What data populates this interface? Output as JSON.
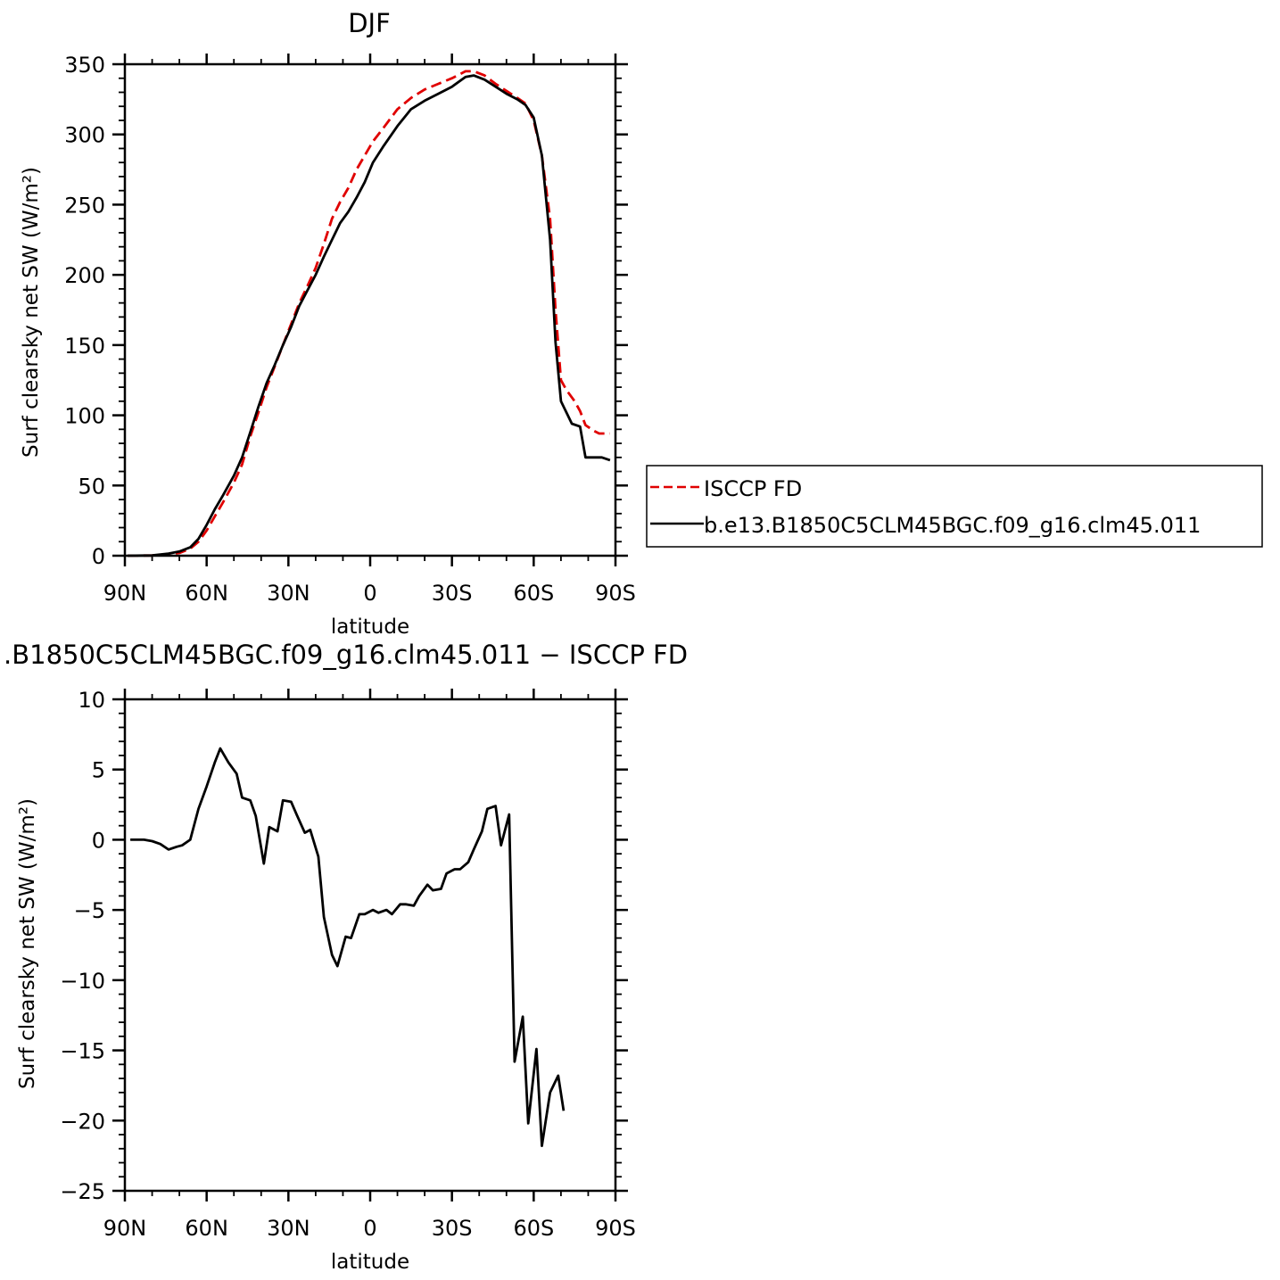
{
  "chart_data": [
    {
      "type": "line",
      "title": "DJF",
      "xlabel": "latitude",
      "ylabel": "Surf clearsky net SW (W/m²)",
      "xlim": [
        -90,
        90
      ],
      "ylim": [
        0,
        350
      ],
      "xticks": [
        -90,
        -60,
        -30,
        0,
        30,
        60,
        90
      ],
      "xtick_labels": [
        "90N",
        "60N",
        "30N",
        "0",
        "30S",
        "60S",
        "90S"
      ],
      "yticks": [
        0,
        50,
        100,
        150,
        200,
        250,
        300,
        350
      ],
      "ytick_labels": [
        "0",
        "50",
        "100",
        "150",
        "200",
        "250",
        "300",
        "350"
      ],
      "legend": {
        "placement": "right",
        "entries": [
          {
            "label": "ISCCP FD",
            "color": "#e00000",
            "dash": true
          },
          {
            "label": "b.e13.B1850C5CLM45BGC.f09_g16.clm45.011",
            "color": "#000000",
            "dash": false
          }
        ]
      },
      "series": [
        {
          "name": "ISCCP FD",
          "color": "#e00000",
          "dash": true,
          "points": [
            [
              -89,
              0
            ],
            [
              -80,
              0.2
            ],
            [
              -74,
              1
            ],
            [
              -70,
              2
            ],
            [
              -66,
              5
            ],
            [
              -63,
              10
            ],
            [
              -60,
              18
            ],
            [
              -57,
              28
            ],
            [
              -54,
              38
            ],
            [
              -50,
              52
            ],
            [
              -47,
              65
            ],
            [
              -44,
              85
            ],
            [
              -41,
              102
            ],
            [
              -38,
              120
            ],
            [
              -35,
              135
            ],
            [
              -32,
              150
            ],
            [
              -29,
              165
            ],
            [
              -26,
              180
            ],
            [
              -23,
              192
            ],
            [
              -20,
              205
            ],
            [
              -17,
              222
            ],
            [
              -14,
              240
            ],
            [
              -11,
              252
            ],
            [
              -8,
              262
            ],
            [
              -5,
              275
            ],
            [
              -2,
              285
            ],
            [
              1,
              295
            ],
            [
              5,
              305
            ],
            [
              10,
              318
            ],
            [
              15,
              326
            ],
            [
              20,
              332
            ],
            [
              25,
              336
            ],
            [
              30,
              340
            ],
            [
              35,
              345
            ],
            [
              38,
              345
            ],
            [
              42,
              342
            ],
            [
              46,
              336
            ],
            [
              50,
              331
            ],
            [
              54,
              326
            ],
            [
              57,
              322
            ],
            [
              60,
              310
            ],
            [
              63,
              285
            ],
            [
              66,
              240
            ],
            [
              68,
              175
            ],
            [
              70,
              125
            ],
            [
              72,
              118
            ],
            [
              75,
              110
            ],
            [
              77,
              103
            ],
            [
              79,
              93
            ],
            [
              82,
              89
            ],
            [
              84,
              87
            ],
            [
              86,
              87
            ],
            [
              88,
              87
            ]
          ]
        },
        {
          "name": "b.e13.B1850C5CLM45BGC.f09_g16.clm45.011",
          "color": "#000000",
          "dash": false,
          "points": [
            [
              -89,
              0
            ],
            [
              -80,
              0.2
            ],
            [
              -74,
              1.5
            ],
            [
              -70,
              3
            ],
            [
              -66,
              6
            ],
            [
              -63,
              12
            ],
            [
              -60,
              22
            ],
            [
              -57,
              33
            ],
            [
              -54,
              43
            ],
            [
              -50,
              57
            ],
            [
              -47,
              70
            ],
            [
              -44,
              88
            ],
            [
              -41,
              106
            ],
            [
              -38,
              123
            ],
            [
              -35,
              136
            ],
            [
              -32,
              150
            ],
            [
              -29,
              163
            ],
            [
              -26,
              178
            ],
            [
              -23,
              189
            ],
            [
              -20,
              200
            ],
            [
              -17,
              213
            ],
            [
              -14,
              225
            ],
            [
              -11,
              237
            ],
            [
              -8,
              245
            ],
            [
              -5,
              255
            ],
            [
              -2,
              266
            ],
            [
              1,
              280
            ],
            [
              5,
              292
            ],
            [
              10,
              306
            ],
            [
              15,
              318
            ],
            [
              20,
              324
            ],
            [
              25,
              329
            ],
            [
              30,
              334
            ],
            [
              35,
              341
            ],
            [
              38,
              342
            ],
            [
              42,
              339
            ],
            [
              46,
              334
            ],
            [
              50,
              329
            ],
            [
              54,
              325
            ],
            [
              57,
              321
            ],
            [
              60,
              312
            ],
            [
              63,
              285
            ],
            [
              66,
              225
            ],
            [
              68,
              152
            ],
            [
              70,
              110
            ],
            [
              72,
              102
            ],
            [
              74,
              94
            ],
            [
              77,
              92
            ],
            [
              79,
              70
            ],
            [
              82,
              70
            ],
            [
              85,
              70
            ],
            [
              88,
              68
            ]
          ]
        }
      ]
    },
    {
      "type": "line",
      "title": ".B1850C5CLM45BGC.f09_g16.clm45.011 − ISCCP FD",
      "xlabel": "latitude",
      "ylabel": "Surf clearsky net SW (W/m²)",
      "xlim": [
        -90,
        90
      ],
      "ylim": [
        -25,
        10
      ],
      "xticks": [
        -90,
        -60,
        -30,
        0,
        30,
        60,
        90
      ],
      "xtick_labels": [
        "90N",
        "60N",
        "30N",
        "0",
        "30S",
        "60S",
        "90S"
      ],
      "yticks": [
        -25,
        -20,
        -15,
        -10,
        -5,
        0,
        5,
        10
      ],
      "ytick_labels": [
        "−25",
        "−20",
        "−15",
        "−10",
        "−5",
        "0",
        "5",
        "10"
      ],
      "series": [
        {
          "color": "#000000",
          "dash": false,
          "points": [
            [
              -88,
              0
            ],
            [
              -83,
              0
            ],
            [
              -80,
              -0.1
            ],
            [
              -77,
              -0.3
            ],
            [
              -74,
              -0.7
            ],
            [
              -71,
              -0.5
            ],
            [
              -69,
              -0.4
            ],
            [
              -66,
              0
            ],
            [
              -63,
              2.2
            ],
            [
              -60,
              3.8
            ],
            [
              -57,
              5.5
            ],
            [
              -55,
              6.5
            ],
            [
              -52,
              5.5
            ],
            [
              -49,
              4.7
            ],
            [
              -47,
              3
            ],
            [
              -44,
              2.8
            ],
            [
              -42,
              1.7
            ],
            [
              -39,
              -1.7
            ],
            [
              -37,
              0.9
            ],
            [
              -34,
              0.6
            ],
            [
              -32,
              2.8
            ],
            [
              -29,
              2.7
            ],
            [
              -27,
              1.8
            ],
            [
              -24,
              0.5
            ],
            [
              -22,
              0.7
            ],
            [
              -19,
              -1.2
            ],
            [
              -17,
              -5.5
            ],
            [
              -14,
              -8.2
            ],
            [
              -12,
              -9
            ],
            [
              -9,
              -6.9
            ],
            [
              -7,
              -7
            ],
            [
              -4,
              -5.3
            ],
            [
              -2,
              -5.3
            ],
            [
              1,
              -5
            ],
            [
              3,
              -5.2
            ],
            [
              6,
              -5
            ],
            [
              8,
              -5.3
            ],
            [
              11,
              -4.6
            ],
            [
              13,
              -4.6
            ],
            [
              16,
              -4.7
            ],
            [
              18,
              -4
            ],
            [
              21,
              -3.2
            ],
            [
              23,
              -3.6
            ],
            [
              26,
              -3.5
            ],
            [
              28,
              -2.4
            ],
            [
              31,
              -2.1
            ],
            [
              33,
              -2.1
            ],
            [
              36,
              -1.6
            ],
            [
              38,
              -0.7
            ],
            [
              41,
              0.6
            ],
            [
              43,
              2.2
            ],
            [
              46,
              2.4
            ],
            [
              48,
              -0.4
            ],
            [
              51,
              1.8
            ],
            [
              53,
              -15.8
            ],
            [
              56,
              -12.6
            ],
            [
              58,
              -20.2
            ],
            [
              61,
              -14.9
            ],
            [
              63,
              -21.8
            ],
            [
              66,
              -18
            ],
            [
              69,
              -16.8
            ],
            [
              71,
              -19.3
            ]
          ]
        }
      ]
    }
  ]
}
